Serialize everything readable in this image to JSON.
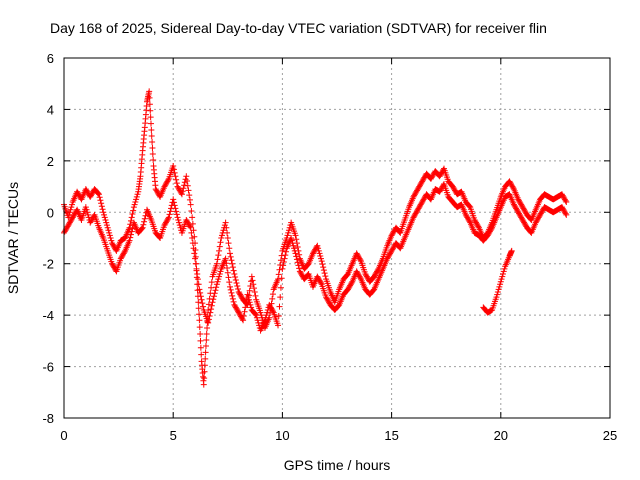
{
  "chart_data": {
    "type": "scatter",
    "title": "Day 168 of 2025, Sidereal Day-to-day VTEC variation (SDTVAR) for receiver flin",
    "xlabel": "GPS time / hours",
    "ylabel": "SDTVAR / TECUs",
    "xlim": [
      0,
      25
    ],
    "ylim": [
      -8,
      6
    ],
    "xticks": [
      0,
      5,
      10,
      15,
      20,
      25
    ],
    "yticks": [
      -8,
      -6,
      -4,
      -2,
      0,
      2,
      4,
      6
    ],
    "grid": true,
    "marker": "plus",
    "color": "#ff0000",
    "series": [
      {
        "name": "SDTVAR",
        "segments": [
          [
            [
              0.0,
              0.3
            ],
            [
              0.2,
              -0.2
            ],
            [
              0.4,
              0.4
            ],
            [
              0.6,
              0.8
            ],
            [
              0.8,
              0.5
            ],
            [
              1.0,
              0.9
            ],
            [
              1.2,
              0.6
            ],
            [
              1.4,
              0.9
            ],
            [
              1.6,
              0.7
            ],
            [
              1.8,
              0.0
            ],
            [
              2.0,
              -0.6
            ],
            [
              2.2,
              -1.2
            ],
            [
              2.4,
              -1.5
            ],
            [
              2.6,
              -1.1
            ],
            [
              2.8,
              -1.0
            ],
            [
              3.0,
              -0.6
            ],
            [
              3.2,
              0.2
            ],
            [
              3.4,
              0.8
            ],
            [
              3.5,
              1.4
            ],
            [
              3.6,
              2.4
            ],
            [
              3.7,
              3.3
            ],
            [
              3.8,
              4.3
            ],
            [
              3.9,
              4.7
            ],
            [
              4.0,
              3.2
            ],
            [
              4.1,
              1.8
            ],
            [
              4.2,
              0.9
            ],
            [
              4.4,
              0.6
            ],
            [
              4.6,
              1.0
            ],
            [
              4.8,
              1.3
            ],
            [
              5.0,
              1.8
            ],
            [
              5.2,
              1.0
            ],
            [
              5.4,
              0.7
            ],
            [
              5.6,
              1.4
            ],
            [
              5.8,
              0.3
            ],
            [
              6.0,
              -1.2
            ],
            [
              6.1,
              -2.8
            ],
            [
              6.2,
              -4.2
            ],
            [
              6.3,
              -5.8
            ],
            [
              6.4,
              -6.7
            ],
            [
              6.5,
              -5.2
            ],
            [
              6.6,
              -3.8
            ],
            [
              6.8,
              -2.5
            ],
            [
              7.0,
              -2.0
            ],
            [
              7.2,
              -1.0
            ],
            [
              7.4,
              -0.4
            ],
            [
              7.6,
              -1.6
            ],
            [
              7.8,
              -2.4
            ],
            [
              8.0,
              -3.1
            ],
            [
              8.2,
              -3.4
            ],
            [
              8.4,
              -3.6
            ],
            [
              8.6,
              -2.5
            ],
            [
              8.8,
              -3.4
            ],
            [
              9.0,
              -3.9
            ],
            [
              9.2,
              -4.5
            ],
            [
              9.4,
              -4.1
            ],
            [
              9.6,
              -3.0
            ],
            [
              9.8,
              -2.6
            ],
            [
              10.0,
              -1.5
            ],
            [
              10.2,
              -1.0
            ],
            [
              10.4,
              -0.4
            ],
            [
              10.6,
              -0.9
            ],
            [
              10.8,
              -1.8
            ],
            [
              11.0,
              -2.2
            ],
            [
              11.2,
              -2.0
            ],
            [
              11.4,
              -1.6
            ],
            [
              11.6,
              -1.3
            ],
            [
              11.8,
              -1.9
            ],
            [
              12.0,
              -2.6
            ],
            [
              12.2,
              -3.1
            ],
            [
              12.4,
              -3.5
            ],
            [
              12.6,
              -3.0
            ],
            [
              12.8,
              -2.6
            ],
            [
              13.0,
              -2.4
            ],
            [
              13.2,
              -2.0
            ],
            [
              13.4,
              -1.6
            ],
            [
              13.6,
              -1.9
            ],
            [
              13.8,
              -2.4
            ],
            [
              14.0,
              -2.7
            ],
            [
              14.2,
              -2.5
            ],
            [
              14.4,
              -2.2
            ],
            [
              14.6,
              -1.8
            ],
            [
              14.8,
              -1.3
            ],
            [
              15.0,
              -0.9
            ],
            [
              15.2,
              -0.6
            ],
            [
              15.4,
              -0.8
            ],
            [
              15.6,
              -0.3
            ],
            [
              15.8,
              0.2
            ],
            [
              16.0,
              0.6
            ],
            [
              16.2,
              0.9
            ],
            [
              16.4,
              1.2
            ],
            [
              16.6,
              1.5
            ],
            [
              16.8,
              1.3
            ],
            [
              17.0,
              1.6
            ],
            [
              17.2,
              1.4
            ],
            [
              17.4,
              1.7
            ],
            [
              17.6,
              1.2
            ],
            [
              17.8,
              1.0
            ],
            [
              18.0,
              0.7
            ],
            [
              18.2,
              0.8
            ],
            [
              18.4,
              0.4
            ],
            [
              18.6,
              0.2
            ],
            [
              18.8,
              -0.3
            ],
            [
              19.0,
              -0.6
            ],
            [
              19.2,
              -1.0
            ],
            [
              19.4,
              -0.8
            ],
            [
              19.6,
              -0.4
            ],
            [
              19.8,
              0.1
            ],
            [
              20.0,
              0.6
            ],
            [
              20.2,
              1.0
            ],
            [
              20.4,
              1.2
            ],
            [
              20.6,
              0.9
            ],
            [
              20.8,
              0.5
            ],
            [
              21.0,
              0.2
            ],
            [
              21.2,
              -0.1
            ],
            [
              21.4,
              -0.3
            ],
            [
              21.6,
              0.1
            ],
            [
              21.8,
              0.5
            ],
            [
              22.0,
              0.7
            ],
            [
              22.2,
              0.6
            ],
            [
              22.4,
              0.5
            ],
            [
              22.6,
              0.6
            ],
            [
              22.8,
              0.7
            ],
            [
              23.0,
              0.4
            ]
          ],
          [
            [
              0.0,
              -0.8
            ],
            [
              0.2,
              -0.5
            ],
            [
              0.4,
              -0.2
            ],
            [
              0.6,
              0.1
            ],
            [
              0.8,
              -0.3
            ],
            [
              1.0,
              0.2
            ],
            [
              1.2,
              -0.4
            ],
            [
              1.4,
              -0.1
            ],
            [
              1.6,
              -0.6
            ],
            [
              1.8,
              -1.0
            ],
            [
              2.0,
              -1.5
            ],
            [
              2.2,
              -2.0
            ],
            [
              2.4,
              -2.3
            ],
            [
              2.6,
              -1.8
            ],
            [
              2.8,
              -1.5
            ],
            [
              3.0,
              -1.1
            ],
            [
              3.2,
              -0.4
            ],
            [
              3.4,
              -0.8
            ],
            [
              3.6,
              -0.6
            ],
            [
              3.8,
              0.1
            ],
            [
              4.0,
              -0.3
            ],
            [
              4.2,
              -0.8
            ],
            [
              4.4,
              -1.0
            ],
            [
              4.6,
              -0.5
            ],
            [
              4.8,
              -0.2
            ],
            [
              5.0,
              0.5
            ],
            [
              5.2,
              -0.2
            ],
            [
              5.4,
              -0.8
            ],
            [
              5.6,
              -0.3
            ],
            [
              5.8,
              -0.6
            ],
            [
              6.0,
              -1.8
            ],
            [
              6.2,
              -3.0
            ],
            [
              6.4,
              -3.8
            ],
            [
              6.6,
              -4.3
            ],
            [
              6.8,
              -3.5
            ],
            [
              7.0,
              -2.8
            ],
            [
              7.2,
              -2.2
            ],
            [
              7.4,
              -1.8
            ],
            [
              7.6,
              -2.9
            ],
            [
              7.8,
              -3.6
            ],
            [
              8.0,
              -3.9
            ],
            [
              8.2,
              -4.2
            ],
            [
              8.4,
              -3.2
            ],
            [
              8.6,
              -3.8
            ],
            [
              8.8,
              -4.0
            ],
            [
              9.0,
              -4.6
            ],
            [
              9.2,
              -4.2
            ],
            [
              9.4,
              -3.6
            ],
            [
              9.6,
              -3.9
            ],
            [
              9.8,
              -4.4
            ],
            [
              10.0,
              -2.2
            ],
            [
              10.2,
              -1.4
            ],
            [
              10.4,
              -1.0
            ],
            [
              10.6,
              -1.6
            ],
            [
              10.8,
              -2.3
            ],
            [
              11.0,
              -2.6
            ],
            [
              11.2,
              -2.4
            ],
            [
              11.4,
              -2.9
            ],
            [
              11.6,
              -2.5
            ],
            [
              11.8,
              -2.8
            ],
            [
              12.0,
              -3.3
            ],
            [
              12.2,
              -3.6
            ],
            [
              12.4,
              -3.8
            ],
            [
              12.6,
              -3.6
            ],
            [
              12.8,
              -3.2
            ],
            [
              13.0,
              -3.0
            ],
            [
              13.2,
              -2.7
            ],
            [
              13.4,
              -2.3
            ],
            [
              13.6,
              -2.6
            ],
            [
              13.8,
              -3.0
            ],
            [
              14.0,
              -3.2
            ],
            [
              14.2,
              -3.0
            ],
            [
              14.4,
              -2.6
            ],
            [
              14.6,
              -2.2
            ],
            [
              14.8,
              -1.8
            ],
            [
              15.0,
              -1.5
            ],
            [
              15.2,
              -1.2
            ],
            [
              15.4,
              -1.4
            ],
            [
              15.6,
              -1.0
            ],
            [
              15.8,
              -0.6
            ],
            [
              16.0,
              -0.2
            ],
            [
              16.2,
              0.1
            ],
            [
              16.4,
              0.4
            ],
            [
              16.6,
              0.7
            ],
            [
              16.8,
              0.5
            ],
            [
              17.0,
              0.9
            ],
            [
              17.2,
              0.8
            ],
            [
              17.4,
              1.1
            ],
            [
              17.6,
              0.6
            ],
            [
              17.8,
              0.4
            ],
            [
              18.0,
              0.2
            ],
            [
              18.2,
              0.3
            ],
            [
              18.4,
              -0.1
            ],
            [
              18.6,
              -0.4
            ],
            [
              18.8,
              -0.8
            ],
            [
              19.0,
              -0.9
            ],
            [
              19.2,
              -1.1
            ],
            [
              19.4,
              -0.9
            ],
            [
              19.6,
              -0.6
            ],
            [
              19.8,
              -0.2
            ],
            [
              20.0,
              0.2
            ],
            [
              20.2,
              0.6
            ],
            [
              20.4,
              0.7
            ],
            [
              20.6,
              0.3
            ],
            [
              20.8,
              0.0
            ],
            [
              21.0,
              -0.3
            ],
            [
              21.2,
              -0.6
            ],
            [
              21.4,
              -0.8
            ],
            [
              21.6,
              -0.4
            ],
            [
              21.8,
              -0.1
            ],
            [
              22.0,
              0.2
            ],
            [
              22.2,
              0.1
            ],
            [
              22.4,
              0.0
            ],
            [
              22.6,
              0.1
            ],
            [
              22.8,
              0.2
            ],
            [
              23.0,
              -0.1
            ]
          ],
          [
            [
              19.2,
              -3.7
            ],
            [
              19.4,
              -3.9
            ],
            [
              19.6,
              -3.8
            ],
            [
              19.8,
              -3.3
            ],
            [
              20.0,
              -2.7
            ],
            [
              20.2,
              -2.1
            ],
            [
              20.4,
              -1.7
            ],
            [
              20.5,
              -1.5
            ]
          ]
        ]
      }
    ]
  }
}
